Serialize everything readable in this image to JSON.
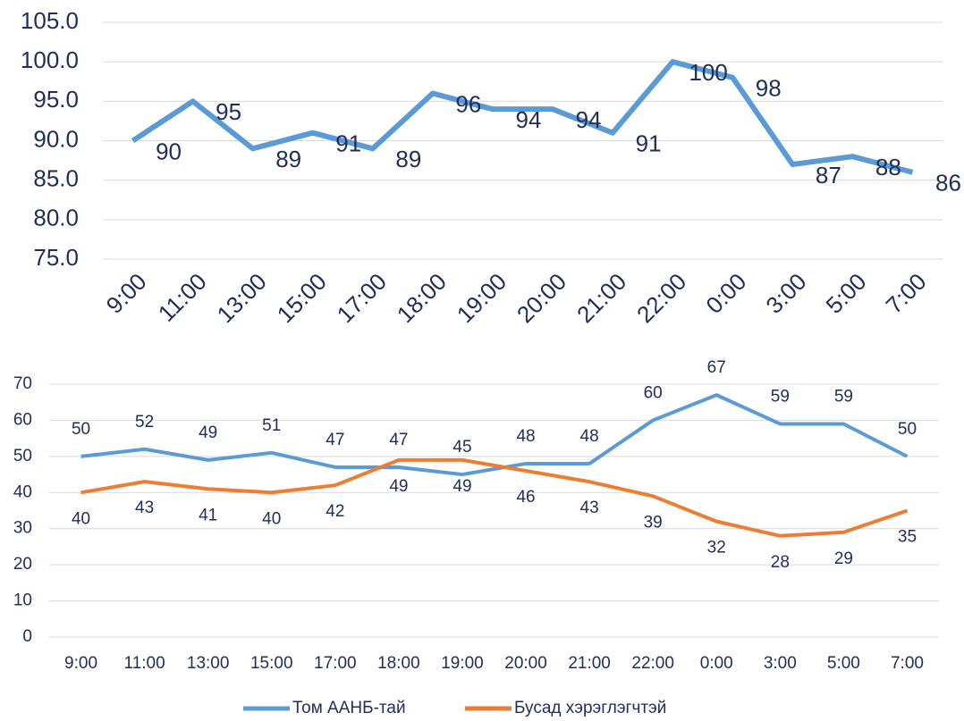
{
  "chart_data": [
    {
      "type": "line",
      "categories": [
        "9:00",
        "11:00",
        "13:00",
        "15:00",
        "17:00",
        "18:00",
        "19:00",
        "20:00",
        "21:00",
        "22:00",
        "0:00",
        "3:00",
        "5:00",
        "7:00"
      ],
      "values": [
        90,
        95,
        89,
        91,
        89,
        96,
        94,
        94,
        91,
        100,
        98,
        87,
        88,
        86
      ],
      "color": "#5b9bd5",
      "ylim": [
        75,
        105
      ],
      "yticks": [
        {
          "value": 75,
          "label": "75.0"
        },
        {
          "value": 80,
          "label": "80.0"
        },
        {
          "value": 85,
          "label": "85.0"
        },
        {
          "value": 90,
          "label": "90.0"
        },
        {
          "value": 95,
          "label": "95.0"
        },
        {
          "value": 100,
          "label": "100.0"
        },
        {
          "value": 105,
          "label": "105.0"
        }
      ],
      "grid": true
    },
    {
      "type": "line",
      "categories": [
        "9:00",
        "11:00",
        "13:00",
        "15:00",
        "17:00",
        "18:00",
        "19:00",
        "20:00",
        "21:00",
        "22:00",
        "0:00",
        "3:00",
        "5:00",
        "7:00"
      ],
      "series": [
        {
          "name": "Том ААНБ-тай",
          "color": "#5b9bd5",
          "values": [
            50,
            52,
            49,
            51,
            47,
            47,
            45,
            48,
            48,
            60,
            67,
            59,
            59,
            50
          ]
        },
        {
          "name": "Бусад хэрэглэгчтэй",
          "color": "#ed7d31",
          "values": [
            40,
            43,
            41,
            40,
            42,
            49,
            49,
            46,
            43,
            39,
            32,
            28,
            29,
            35
          ]
        }
      ],
      "ylim": [
        0,
        70
      ],
      "yticks": [
        0,
        10,
        20,
        30,
        40,
        50,
        60,
        70
      ],
      "grid": true,
      "legend": "bottom"
    }
  ]
}
